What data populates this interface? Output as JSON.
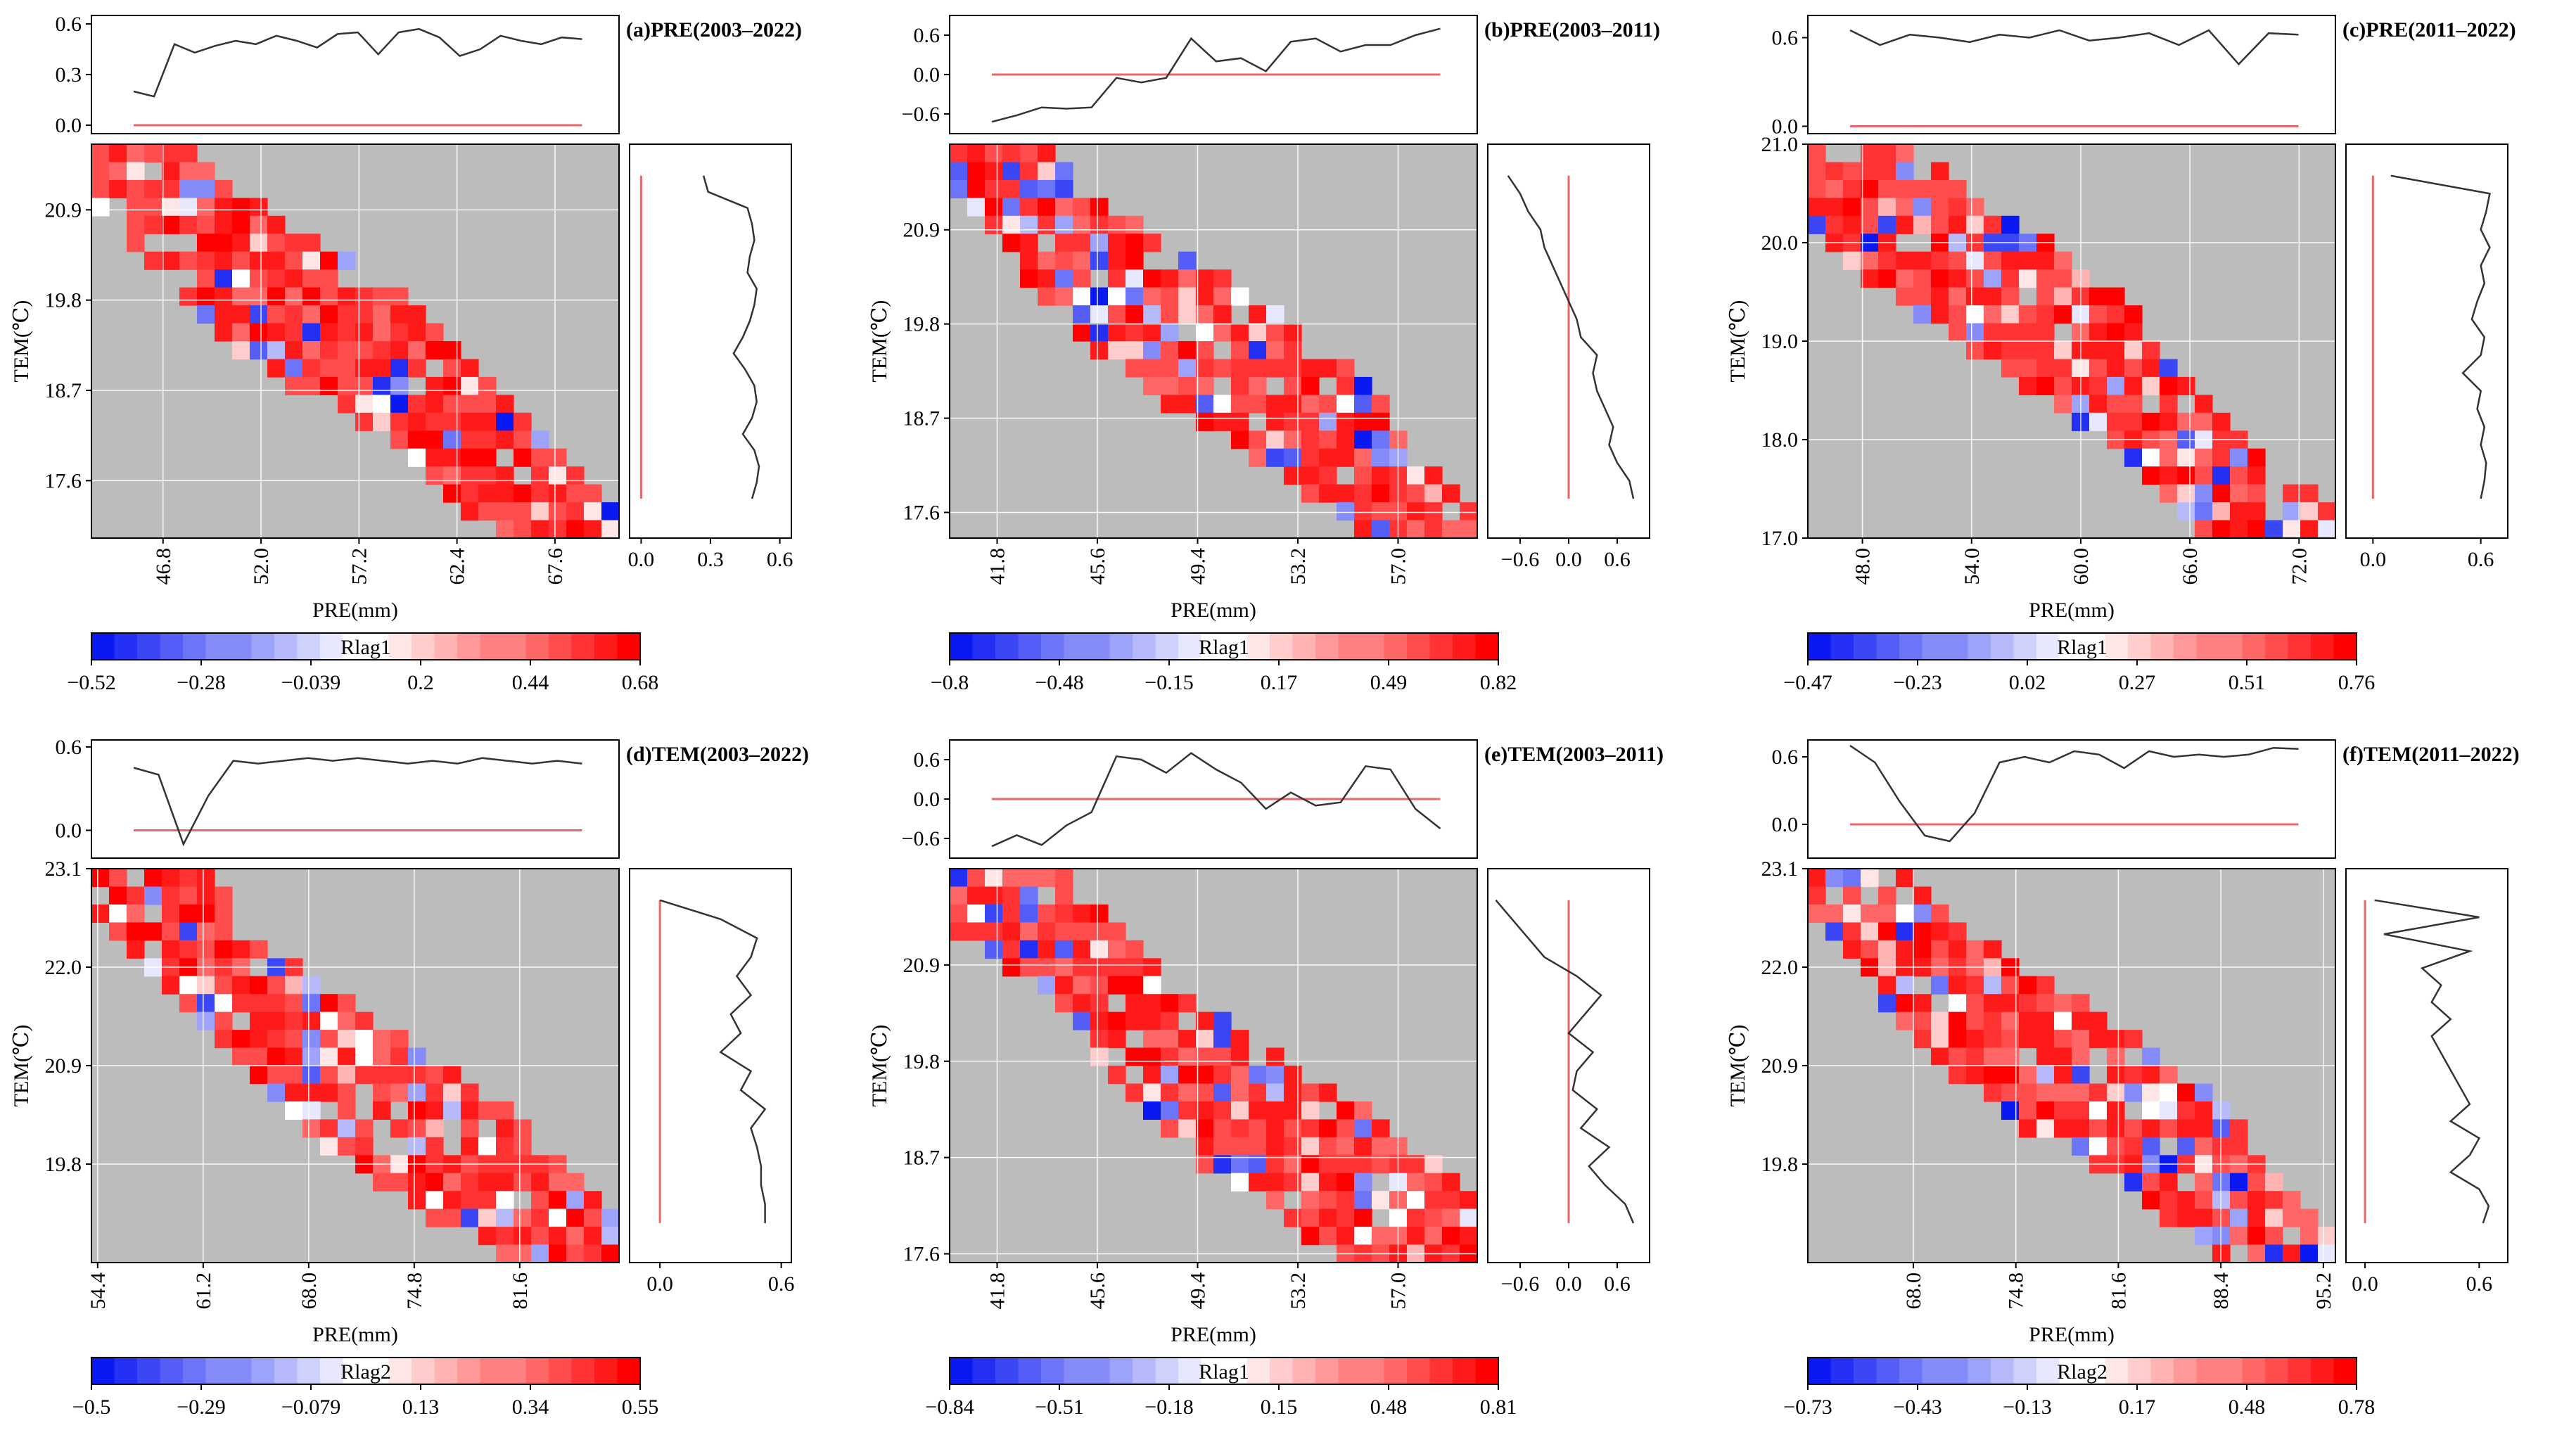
{
  "chart_data": [
    {
      "type": "heatmap",
      "panel_label": "(a)PRE(2003–2022)",
      "xlabel": "PRE(mm)",
      "ylabel": "TEM(℃)",
      "x_ticks": [
        "46.8",
        "52.0",
        "57.2",
        "62.4",
        "67.6"
      ],
      "y_ticks": [
        "20.9",
        "19.8",
        "18.7",
        "17.6"
      ],
      "xlim": [
        43.0,
        71.0
      ],
      "ylim": [
        16.9,
        21.7
      ],
      "top_ticks": [
        "0.6",
        "0.3",
        "0.0"
      ],
      "top_ylim": [
        -0.05,
        0.65
      ],
      "top_values": [
        0.2,
        0.17,
        0.48,
        0.43,
        0.47,
        0.5,
        0.48,
        0.53,
        0.5,
        0.46,
        0.54,
        0.55,
        0.42,
        0.55,
        0.57,
        0.52,
        0.41,
        0.45,
        0.53,
        0.5,
        0.48,
        0.52,
        0.51
      ],
      "right_ticks": [
        "0.0",
        "0.3",
        "0.6"
      ],
      "right_xlim": [
        -0.05,
        0.65
      ],
      "right_values": [
        0.27,
        0.29,
        0.46,
        0.48,
        0.49,
        0.47,
        0.46,
        0.5,
        0.49,
        0.47,
        0.44,
        0.4,
        0.45,
        0.49,
        0.5,
        0.48,
        0.44,
        0.49,
        0.51,
        0.5,
        0.48
      ],
      "corr_range": [
        -0.52,
        0.68
      ],
      "cbar_label": "Rlag1",
      "cbar_ticks": [
        "−0.52",
        "−0.28",
        "−0.039",
        "0.2",
        "0.44",
        "0.68"
      ],
      "seed": 11
    },
    {
      "type": "heatmap",
      "panel_label": "(b)PRE(2003–2011)",
      "xlabel": "PRE(mm)",
      "ylabel": "TEM(℃)",
      "x_ticks": [
        "41.8",
        "45.6",
        "49.4",
        "53.2",
        "57.0"
      ],
      "y_ticks": [
        "20.9",
        "19.8",
        "18.7",
        "17.6"
      ],
      "xlim": [
        40.0,
        60.0
      ],
      "ylim": [
        17.3,
        21.9
      ],
      "top_ticks": [
        "0.6",
        "0.0",
        "−0.6"
      ],
      "top_ylim": [
        -0.9,
        0.9
      ],
      "top_values": [
        -0.72,
        -0.62,
        -0.5,
        -0.52,
        -0.5,
        -0.05,
        -0.12,
        -0.05,
        0.55,
        0.2,
        0.25,
        0.05,
        0.5,
        0.55,
        0.35,
        0.45,
        0.45,
        0.6,
        0.7
      ],
      "right_ticks": [
        "−0.6",
        "0.0",
        "0.6"
      ],
      "right_xlim": [
        -1.0,
        1.0
      ],
      "right_values": [
        -0.75,
        -0.6,
        -0.5,
        -0.35,
        -0.3,
        -0.2,
        -0.1,
        0.0,
        0.1,
        0.15,
        0.35,
        0.3,
        0.35,
        0.45,
        0.55,
        0.5,
        0.6,
        0.75,
        0.8
      ],
      "corr_range": [
        -0.8,
        0.82
      ],
      "cbar_label": "Rlag1",
      "cbar_ticks": [
        "−0.8",
        "−0.48",
        "−0.15",
        "0.17",
        "0.49",
        "0.82"
      ],
      "seed": 23
    },
    {
      "type": "heatmap",
      "panel_label": "(c)PRE(2011–2022)",
      "xlabel": "PRE(mm)",
      "ylabel": "TEM(℃)",
      "x_ticks": [
        "48.0",
        "54.0",
        "60.0",
        "66.0",
        "72.0"
      ],
      "y_ticks": [
        "21.0",
        "20.0",
        "19.0",
        "18.0",
        "17.0"
      ],
      "xlim": [
        45.0,
        74.0
      ],
      "ylim": [
        17.0,
        21.0
      ],
      "top_ticks": [
        "0.6",
        "0.0"
      ],
      "top_ylim": [
        -0.05,
        0.75
      ],
      "top_values": [
        0.65,
        0.55,
        0.62,
        0.6,
        0.57,
        0.62,
        0.6,
        0.65,
        0.58,
        0.6,
        0.63,
        0.55,
        0.65,
        0.42,
        0.63,
        0.62
      ],
      "right_ticks": [
        "0.0",
        "0.6"
      ],
      "right_xlim": [
        -0.15,
        0.75
      ],
      "right_values": [
        0.1,
        0.65,
        0.63,
        0.6,
        0.65,
        0.6,
        0.62,
        0.58,
        0.55,
        0.62,
        0.6,
        0.5,
        0.6,
        0.58,
        0.62,
        0.6,
        0.63,
        0.62,
        0.6
      ],
      "corr_range": [
        -0.47,
        0.76
      ],
      "cbar_label": "Rlag1",
      "cbar_ticks": [
        "−0.47",
        "−0.23",
        "0.02",
        "0.27",
        "0.51",
        "0.76"
      ],
      "seed": 37
    },
    {
      "type": "heatmap",
      "panel_label": "(d)TEM(2003–2022)",
      "xlabel": "PRE(mm)",
      "ylabel": "TEM(℃)",
      "x_ticks": [
        "54.4",
        "61.2",
        "68.0",
        "74.8",
        "81.6"
      ],
      "y_ticks": [
        "23.1",
        "22.0",
        "20.9",
        "19.8"
      ],
      "xlim": [
        54.0,
        88.0
      ],
      "ylim": [
        18.7,
        23.1
      ],
      "top_ticks": [
        "0.6",
        "0.0"
      ],
      "top_ylim": [
        -0.2,
        0.65
      ],
      "top_values": [
        0.45,
        0.4,
        -0.1,
        0.25,
        0.5,
        0.48,
        0.5,
        0.52,
        0.5,
        0.52,
        0.5,
        0.48,
        0.5,
        0.48,
        0.52,
        0.5,
        0.48,
        0.5,
        0.48
      ],
      "right_ticks": [
        "0.0",
        "0.6"
      ],
      "right_xlim": [
        -0.15,
        0.65
      ],
      "right_values": [
        0.0,
        0.3,
        0.48,
        0.45,
        0.38,
        0.45,
        0.35,
        0.4,
        0.3,
        0.45,
        0.4,
        0.52,
        0.45,
        0.48,
        0.5,
        0.5,
        0.52,
        0.52
      ],
      "corr_range": [
        -0.5,
        0.55
      ],
      "cbar_label": "Rlag2",
      "cbar_ticks": [
        "−0.5",
        "−0.29",
        "−0.079",
        "0.13",
        "0.34",
        "0.55"
      ],
      "seed": 41
    },
    {
      "type": "heatmap",
      "panel_label": "(e)TEM(2003–2011)",
      "xlabel": "PRE(mm)",
      "ylabel": "TEM(℃)",
      "x_ticks": [
        "41.8",
        "45.6",
        "49.4",
        "53.2",
        "57.0"
      ],
      "y_ticks": [
        "20.9",
        "19.8",
        "18.7",
        "17.6"
      ],
      "xlim": [
        40.0,
        60.0
      ],
      "ylim": [
        17.5,
        22.0
      ],
      "top_ticks": [
        "0.6",
        "0.0",
        "−0.6"
      ],
      "top_ylim": [
        -0.9,
        0.9
      ],
      "top_values": [
        -0.72,
        -0.55,
        -0.7,
        -0.4,
        -0.2,
        0.65,
        0.6,
        0.4,
        0.7,
        0.45,
        0.25,
        -0.15,
        0.1,
        -0.1,
        -0.05,
        0.5,
        0.45,
        -0.15,
        -0.45
      ],
      "right_ticks": [
        "−0.6",
        "0.0",
        "0.6"
      ],
      "right_xlim": [
        -1.0,
        1.0
      ],
      "right_values": [
        -0.9,
        -0.7,
        -0.5,
        -0.3,
        0.1,
        0.4,
        0.2,
        0.0,
        0.3,
        0.1,
        0.05,
        0.35,
        0.15,
        0.5,
        0.25,
        0.45,
        0.7,
        0.8
      ],
      "corr_range": [
        -0.84,
        0.81
      ],
      "cbar_label": "Rlag1",
      "cbar_ticks": [
        "−0.84",
        "−0.51",
        "−0.18",
        "0.15",
        "0.48",
        "0.81"
      ],
      "seed": 53
    },
    {
      "type": "heatmap",
      "panel_label": "(f)TEM(2011–2022)",
      "xlabel": "PRE(mm)",
      "ylabel": "TEM(℃)",
      "x_ticks": [
        "68.0",
        "74.8",
        "81.6",
        "88.4",
        "95.2"
      ],
      "y_ticks": [
        "23.1",
        "22.0",
        "20.9",
        "19.8"
      ],
      "xlim": [
        61.0,
        96.0
      ],
      "ylim": [
        18.7,
        23.1
      ],
      "top_ticks": [
        "0.6",
        "0.0"
      ],
      "top_ylim": [
        -0.3,
        0.75
      ],
      "top_values": [
        0.7,
        0.55,
        0.2,
        -0.1,
        -0.15,
        0.1,
        0.55,
        0.6,
        0.55,
        0.65,
        0.62,
        0.5,
        0.65,
        0.6,
        0.62,
        0.6,
        0.62,
        0.68,
        0.67
      ],
      "right_ticks": [
        "0.0",
        "0.6"
      ],
      "right_xlim": [
        -0.1,
        0.75
      ],
      "right_values": [
        0.05,
        0.6,
        0.1,
        0.55,
        0.3,
        0.4,
        0.35,
        0.45,
        0.35,
        0.4,
        0.45,
        0.5,
        0.55,
        0.45,
        0.6,
        0.55,
        0.45,
        0.6,
        0.65,
        0.62
      ],
      "corr_range": [
        -0.73,
        0.78
      ],
      "cbar_label": "Rlag2",
      "cbar_ticks": [
        "−0.73",
        "−0.43",
        "−0.13",
        "0.17",
        "0.48",
        "0.78"
      ],
      "seed": 67
    }
  ],
  "colors": {
    "background_grey": "#bcbcbc",
    "grid": "#ffffff",
    "line": "#333333",
    "ref_line": "#e8676a",
    "cmap_low": "#0a18f2",
    "cmap_mid": "#ffffff",
    "cmap_high": "#ff0000"
  }
}
